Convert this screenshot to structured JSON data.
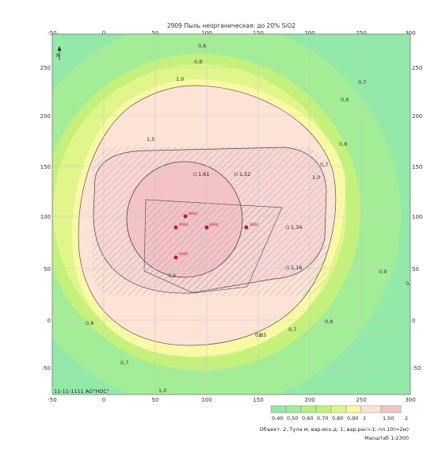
{
  "map": {
    "title": "2909 Пыль неорганическая: до 20% SiO2",
    "x_ticks": [
      "-50",
      "0",
      "50",
      "100",
      "150",
      "200",
      "250",
      "300"
    ],
    "y_ticks": [
      "250",
      "200",
      "150",
      "100",
      "50",
      "0",
      "-50"
    ],
    "footer_left": "11-11-1111 АО\"НОС\"",
    "contour_labels": [
      "0,6",
      "0,8",
      "1,0",
      "1,5",
      "0,7",
      "0,8",
      "0,8",
      "0,7",
      "1,0",
      "0,9",
      "0,8",
      "0,7",
      "0,6",
      "1,5",
      "0,8",
      "0,7",
      "1,5",
      "1,0",
      "0,9"
    ],
    "receptor_labels": [
      "1,61",
      "1,52",
      "1,34",
      "1,16"
    ],
    "sources": [
      "6001",
      "6003",
      "6004",
      "6002",
      "6005"
    ],
    "colors": {
      "c1": "#92e9a8",
      "c2": "#a4ed97",
      "c3": "#c4f17c",
      "c4": "#e0f58a",
      "c5": "#f9f9a5",
      "c6": "#fce3d6",
      "c7": "#f3c3c6",
      "source": "#d4004c"
    }
  },
  "legend": {
    "labels": [
      "0,40",
      "0,50",
      "0,60",
      "0,70",
      "0,80",
      "0,90",
      "1",
      "1,50",
      "2"
    ]
  },
  "footer": {
    "info": "Объект: 2, Тула м; вар.исх.д: 1; вар.расч:1; пл.10(=2м)",
    "scale": "Масштаб 1:2300"
  }
}
